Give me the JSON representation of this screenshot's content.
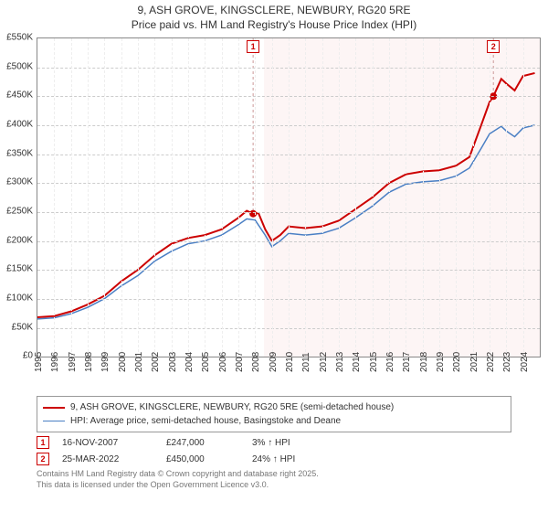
{
  "title": {
    "line1": "9, ASH GROVE, KINGSCLERE, NEWBURY, RG20 5RE",
    "line2": "Price paid vs. HM Land Registry's House Price Index (HPI)",
    "fontsize": 12
  },
  "chart": {
    "type": "line",
    "background_color": "#ffffff",
    "grid_color": "#cccccc",
    "border_color": "#888888",
    "ylim": [
      0,
      550
    ],
    "ylabels": [
      "£0",
      "£50K",
      "£100K",
      "£150K",
      "£200K",
      "£250K",
      "£300K",
      "£350K",
      "£400K",
      "£450K",
      "£500K",
      "£550K"
    ],
    "yticks": [
      0,
      50,
      100,
      150,
      200,
      250,
      300,
      350,
      400,
      450,
      500,
      550
    ],
    "x_years": [
      1995,
      1996,
      1997,
      1998,
      1999,
      2000,
      2001,
      2002,
      2003,
      2004,
      2005,
      2006,
      2007,
      2008,
      2009,
      2010,
      2011,
      2012,
      2013,
      2014,
      2015,
      2016,
      2017,
      2018,
      2019,
      2020,
      2021,
      2022,
      2023,
      2024
    ],
    "xlim": [
      1995,
      2025
    ],
    "shaded_region": {
      "start": 2008.5,
      "color": "#fdf5f5"
    },
    "series": [
      {
        "name": "series-price-paid",
        "label": "9, ASH GROVE, KINGSCLERE, NEWBURY, RG20 5RE (semi-detached house)",
        "color": "#cc0000",
        "width": 2,
        "data": [
          [
            1995,
            68
          ],
          [
            1996,
            70
          ],
          [
            1997,
            78
          ],
          [
            1998,
            90
          ],
          [
            1999,
            105
          ],
          [
            2000,
            130
          ],
          [
            2001,
            150
          ],
          [
            2002,
            175
          ],
          [
            2003,
            195
          ],
          [
            2004,
            205
          ],
          [
            2005,
            210
          ],
          [
            2006,
            220
          ],
          [
            2007,
            240
          ],
          [
            2007.5,
            252
          ],
          [
            2007.88,
            247
          ],
          [
            2008.2,
            248
          ],
          [
            2008.6,
            220
          ],
          [
            2009,
            200
          ],
          [
            2009.5,
            210
          ],
          [
            2010,
            225
          ],
          [
            2011,
            222
          ],
          [
            2012,
            225
          ],
          [
            2013,
            235
          ],
          [
            2014,
            255
          ],
          [
            2015,
            275
          ],
          [
            2016,
            300
          ],
          [
            2017,
            315
          ],
          [
            2018,
            320
          ],
          [
            2019,
            322
          ],
          [
            2020,
            330
          ],
          [
            2020.8,
            345
          ],
          [
            2021.5,
            400
          ],
          [
            2022,
            440
          ],
          [
            2022.23,
            450
          ],
          [
            2022.7,
            480
          ],
          [
            2023,
            472
          ],
          [
            2023.5,
            460
          ],
          [
            2024,
            485
          ],
          [
            2024.7,
            490
          ]
        ]
      },
      {
        "name": "series-hpi",
        "label": "HPI: Average price, semi-detached house, Basingstoke and Deane",
        "color": "#4a7fc4",
        "width": 1.5,
        "data": [
          [
            1995,
            65
          ],
          [
            1996,
            67
          ],
          [
            1997,
            74
          ],
          [
            1998,
            85
          ],
          [
            1999,
            100
          ],
          [
            2000,
            122
          ],
          [
            2001,
            140
          ],
          [
            2002,
            165
          ],
          [
            2003,
            182
          ],
          [
            2004,
            195
          ],
          [
            2005,
            200
          ],
          [
            2006,
            210
          ],
          [
            2007,
            228
          ],
          [
            2007.5,
            238
          ],
          [
            2008,
            236
          ],
          [
            2008.6,
            210
          ],
          [
            2009,
            190
          ],
          [
            2009.5,
            200
          ],
          [
            2010,
            213
          ],
          [
            2011,
            210
          ],
          [
            2012,
            213
          ],
          [
            2013,
            222
          ],
          [
            2014,
            240
          ],
          [
            2015,
            260
          ],
          [
            2016,
            284
          ],
          [
            2017,
            298
          ],
          [
            2018,
            302
          ],
          [
            2019,
            304
          ],
          [
            2020,
            312
          ],
          [
            2020.8,
            326
          ],
          [
            2021.5,
            360
          ],
          [
            2022,
            385
          ],
          [
            2022.7,
            398
          ],
          [
            2023,
            390
          ],
          [
            2023.5,
            380
          ],
          [
            2024,
            395
          ],
          [
            2024.7,
            400
          ]
        ]
      }
    ],
    "event_markers": [
      {
        "id": "1",
        "x": 2007.88,
        "y": 247,
        "label_top": true
      },
      {
        "id": "2",
        "x": 2022.23,
        "y": 450,
        "label_top": true
      }
    ],
    "dot_color": "#cc0000",
    "dot_radius": 4
  },
  "legend": {
    "rows": [
      {
        "color": "#cc0000",
        "width": 2,
        "label": "9, ASH GROVE, KINGSCLERE, NEWBURY, RG20 5RE (semi-detached house)"
      },
      {
        "color": "#4a7fc4",
        "width": 1.5,
        "label": "HPI: Average price, semi-detached house, Basingstoke and Deane"
      }
    ]
  },
  "events": [
    {
      "id": "1",
      "date": "16-NOV-2007",
      "price": "£247,000",
      "pct": "3% ↑ HPI"
    },
    {
      "id": "2",
      "date": "25-MAR-2022",
      "price": "£450,000",
      "pct": "24% ↑ HPI"
    }
  ],
  "footer": {
    "line1": "Contains HM Land Registry data © Crown copyright and database right 2025.",
    "line2": "This data is licensed under the Open Government Licence v3.0."
  }
}
